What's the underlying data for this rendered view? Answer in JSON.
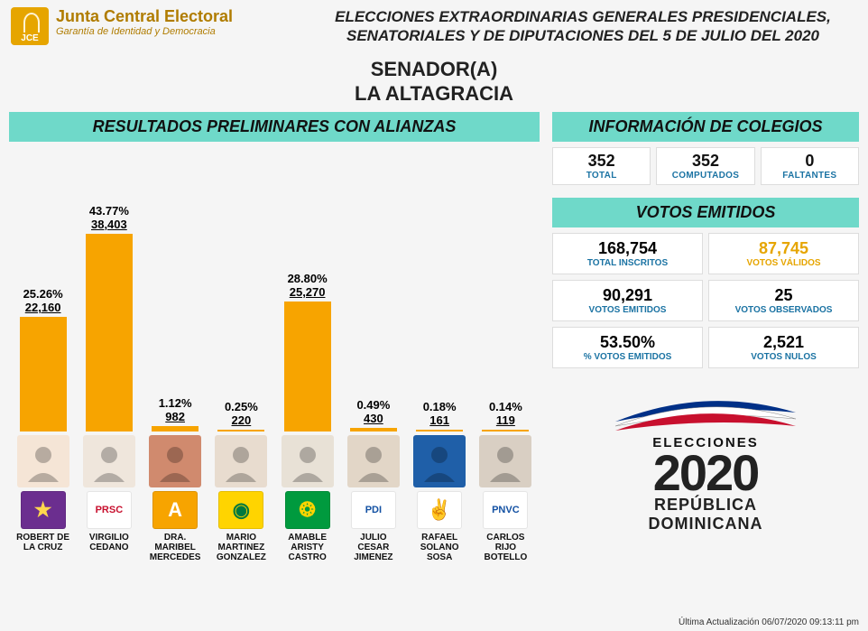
{
  "org": {
    "name": "Junta Central Electoral",
    "tagline": "Garantía de Identidad y Democracia",
    "logo_label": "JCE",
    "logo_bg": "#e6a500"
  },
  "header": {
    "line1": "ELECCIONES EXTRAORDINARIAS GENERALES PRESIDENCIALES,",
    "line2": "SENATORIALES Y DE DIPUTACIONES DEL 5 DE JULIO DEL 2020"
  },
  "race": {
    "line1": "SENADOR(A)",
    "line2": "LA ALTAGRACIA"
  },
  "sections": {
    "results": "RESULTADOS PRELIMINARES CON ALIANZAS",
    "colleges": "INFORMACIÓN DE COLEGIOS",
    "votes": "VOTOS EMITIDOS"
  },
  "colleges": {
    "total": {
      "value": "352",
      "label": "TOTAL"
    },
    "computed": {
      "value": "352",
      "label": "COMPUTADOS"
    },
    "missing": {
      "value": "0",
      "label": "FALTANTES"
    }
  },
  "votes": {
    "inscritos": {
      "value": "168,754",
      "label": "TOTAL INSCRITOS"
    },
    "validos": {
      "value": "87,745",
      "label": "VOTOS VÁLIDOS",
      "highlight": true
    },
    "emitidos": {
      "value": "90,291",
      "label": "VOTOS EMITIDOS"
    },
    "observados": {
      "value": "25",
      "label": "VOTOS OBSERVADOS"
    },
    "pct": {
      "value": "53.50%",
      "label": "% VOTOS EMITIDOS"
    },
    "nulos": {
      "value": "2,521",
      "label": "VOTOS NULOS"
    }
  },
  "elections_logo": {
    "small": "ELECCIONES",
    "year": "2020",
    "sub1": "REPÚBLICA",
    "sub2": "DOMINICANA"
  },
  "timestamp": "Última Actualización 06/07/2020 09:13:11 pm",
  "chart": {
    "type": "bar",
    "bar_color": "#f7a400",
    "max_pct": 50,
    "label_fontsize": 13,
    "name_fontsize": 10,
    "candidates": [
      {
        "pct": "25.26%",
        "votes": "22,160",
        "height_pct": 50.5,
        "name_lines": [
          "ROBERT DE",
          "LA CRUZ"
        ],
        "avatar_bg": "#f5e5d6",
        "party_bg": "#6b2e8f",
        "party_fg": "#ffd84d",
        "party_text": "★"
      },
      {
        "pct": "43.77%",
        "votes": "38,403",
        "height_pct": 87.5,
        "name_lines": [
          "VIRGILIO",
          "CEDANO"
        ],
        "avatar_bg": "#efe6dc",
        "party_bg": "#ffffff",
        "party_fg": "#c8102e",
        "party_text": "PRSC"
      },
      {
        "pct": "1.12%",
        "votes": "982",
        "height_pct": 2.3,
        "name_lines": [
          "DRA.",
          "MARIBEL",
          "MERCEDES"
        ],
        "avatar_bg": "#d08a6e",
        "party_bg": "#f7a400",
        "party_fg": "#ffffff",
        "party_text": "A"
      },
      {
        "pct": "0.25%",
        "votes": "220",
        "height_pct": 0.8,
        "name_lines": [
          "MARIO",
          "MARTINEZ",
          "GONZALEZ"
        ],
        "avatar_bg": "#e8dccf",
        "party_bg": "#ffd400",
        "party_fg": "#00783e",
        "party_text": "◉"
      },
      {
        "pct": "28.80%",
        "votes": "25,270",
        "height_pct": 57.6,
        "name_lines": [
          "AMABLE",
          "ARISTY",
          "CASTRO"
        ],
        "avatar_bg": "#e8e1d6",
        "party_bg": "#009a3e",
        "party_fg": "#ffd400",
        "party_text": "❂"
      },
      {
        "pct": "0.49%",
        "votes": "430",
        "height_pct": 1.3,
        "name_lines": [
          "JULIO",
          "CESAR",
          "JIMENEZ"
        ],
        "avatar_bg": "#e2d6c7",
        "party_bg": "#ffffff",
        "party_fg": "#1351a3",
        "party_text": "PDI"
      },
      {
        "pct": "0.18%",
        "votes": "161",
        "height_pct": 0.6,
        "name_lines": [
          "RAFAEL",
          "SOLANO",
          "SOSA"
        ],
        "avatar_bg": "#1f5fa8",
        "party_bg": "#ffffff",
        "party_fg": "#2e9b3e",
        "party_text": "✌"
      },
      {
        "pct": "0.14%",
        "votes": "119",
        "height_pct": 0.5,
        "name_lines": [
          "CARLOS",
          "RIJO",
          "BOTELLO"
        ],
        "avatar_bg": "#d9cfc3",
        "party_bg": "#ffffff",
        "party_fg": "#1351a3",
        "party_text": "PNVC"
      }
    ]
  },
  "flag_colors": {
    "red": "#c8102e",
    "blue": "#003087",
    "white": "#ffffff"
  }
}
